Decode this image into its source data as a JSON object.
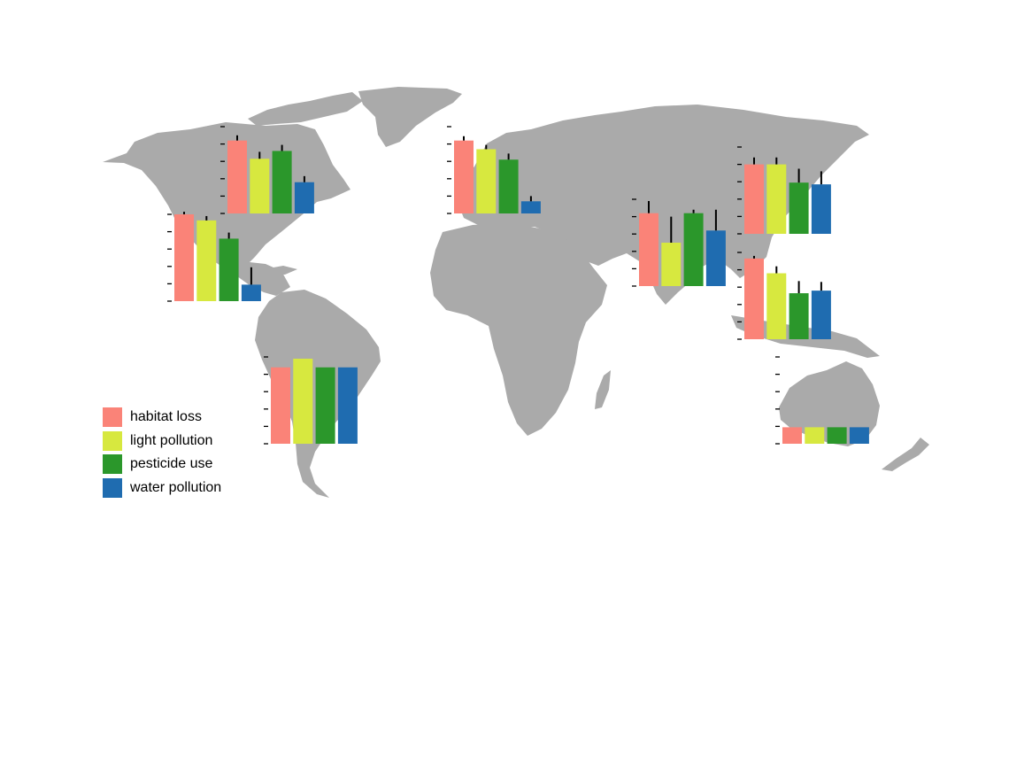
{
  "colors": {
    "land": "#aaaaaa",
    "error_bar": "#000000",
    "tick": "#000000",
    "background": "#ffffff"
  },
  "legend": {
    "items": [
      {
        "label": "habitat loss",
        "color": "#fa8378"
      },
      {
        "label": "light pollution",
        "color": "#d7e83f"
      },
      {
        "label": "pesticide use",
        "color": "#2b972b"
      },
      {
        "label": "water pollution",
        "color": "#1f6cb0"
      }
    ]
  },
  "chart_data": [
    {
      "type": "bar",
      "region": "North America (east)",
      "categories": [
        "habitat loss",
        "light pollution",
        "pesticide use",
        "water pollution"
      ],
      "values": [
        0.84,
        0.63,
        0.72,
        0.36
      ],
      "errors": [
        0.06,
        0.08,
        0.07,
        0.07
      ],
      "ylim": [
        0,
        1
      ]
    },
    {
      "type": "bar",
      "region": "North America (south)",
      "categories": [
        "habitat loss",
        "light pollution",
        "pesticide use",
        "water pollution"
      ],
      "values": [
        1.0,
        0.93,
        0.72,
        0.19
      ],
      "errors": [
        0.03,
        0.05,
        0.07,
        0.2
      ],
      "ylim": [
        0,
        1
      ]
    },
    {
      "type": "bar",
      "region": "South America",
      "categories": [
        "habitat loss",
        "light pollution",
        "pesticide use",
        "water pollution"
      ],
      "values": [
        0.88,
        0.98,
        0.88,
        0.88
      ],
      "errors": [
        0,
        0,
        0,
        0
      ],
      "ylim": [
        0,
        1
      ]
    },
    {
      "type": "bar",
      "region": "Europe",
      "categories": [
        "habitat loss",
        "light pollution",
        "pesticide use",
        "water pollution"
      ],
      "values": [
        0.84,
        0.74,
        0.62,
        0.14
      ],
      "errors": [
        0.05,
        0.05,
        0.07,
        0.06
      ],
      "ylim": [
        0,
        1
      ]
    },
    {
      "type": "bar",
      "region": "South Asia",
      "categories": [
        "habitat loss",
        "light pollution",
        "pesticide use",
        "water pollution"
      ],
      "values": [
        0.84,
        0.5,
        0.84,
        0.64
      ],
      "errors": [
        0.14,
        0.3,
        0.04,
        0.24
      ],
      "ylim": [
        0,
        1
      ]
    },
    {
      "type": "bar",
      "region": "East Asia",
      "categories": [
        "habitat loss",
        "light pollution",
        "pesticide use",
        "water pollution"
      ],
      "values": [
        0.8,
        0.8,
        0.59,
        0.57
      ],
      "errors": [
        0.08,
        0.08,
        0.16,
        0.15
      ],
      "ylim": [
        0,
        1
      ]
    },
    {
      "type": "bar",
      "region": "Southeast Asia",
      "categories": [
        "habitat loss",
        "light pollution",
        "pesticide use",
        "water pollution"
      ],
      "values": [
        0.93,
        0.76,
        0.53,
        0.56
      ],
      "errors": [
        0.03,
        0.08,
        0.14,
        0.1
      ],
      "ylim": [
        0,
        1
      ]
    },
    {
      "type": "bar",
      "region": "Australia",
      "categories": [
        "habitat loss",
        "light pollution",
        "pesticide use",
        "water pollution"
      ],
      "values": [
        0.19,
        0.19,
        0.19,
        0.19
      ],
      "errors": [
        0,
        0,
        0,
        0
      ],
      "ylim": [
        0,
        1
      ]
    }
  ]
}
